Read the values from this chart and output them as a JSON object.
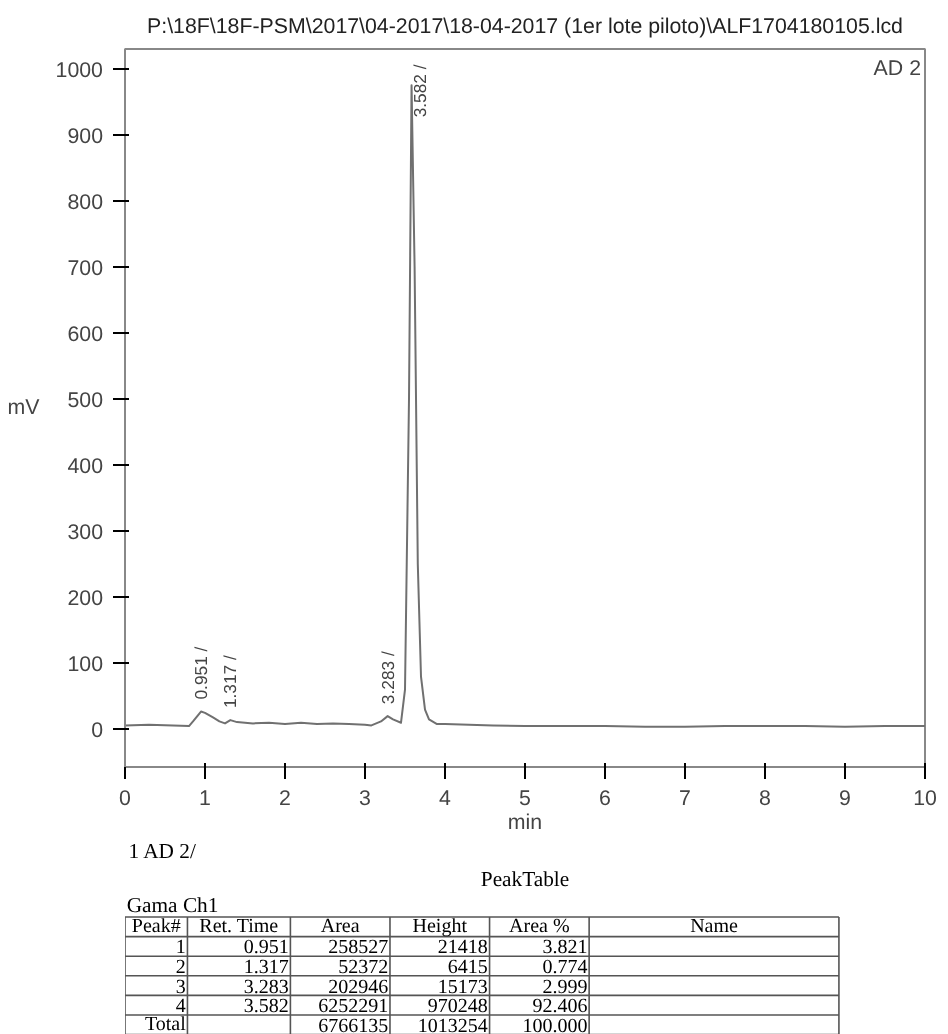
{
  "chart_data": {
    "type": "line",
    "title": "P:\\18F\\18F-PSM\\2017\\04-2017\\18-04-2017 (1er lote piloto)\\ALF1704180105.lcd",
    "xlabel": "min",
    "ylabel": "mV",
    "x": [
      0,
      0.3,
      0.6,
      0.8,
      0.85,
      0.95,
      1.0,
      1.1,
      1.18,
      1.25,
      1.317,
      1.4,
      1.6,
      1.8,
      2.0,
      2.2,
      2.4,
      2.6,
      2.8,
      3.0,
      3.08,
      3.2,
      3.283,
      3.35,
      3.45,
      3.5,
      3.55,
      3.582,
      3.62,
      3.66,
      3.7,
      3.75,
      3.8,
      3.9,
      4.0,
      4.3,
      4.6,
      5,
      5.5,
      6,
      6.5,
      7,
      7.5,
      8,
      8.5,
      9,
      9.5,
      10
    ],
    "series": [
      {
        "color": "#707070",
        "values": [
          6,
          7,
          6,
          5,
          12,
          27,
          25,
          18,
          12,
          9,
          14,
          11,
          9,
          10,
          8,
          10,
          8,
          9,
          8,
          7,
          6,
          12,
          20,
          15,
          10,
          60,
          500,
          975,
          700,
          250,
          80,
          30,
          15,
          8,
          8,
          7,
          6,
          5,
          5,
          5,
          4,
          4,
          5,
          5,
          5,
          4,
          5,
          5
        ]
      }
    ],
    "xlim": [
      0,
      10
    ],
    "ylim": [
      -57,
      1030
    ],
    "xticks": [
      0,
      1,
      2,
      3,
      4,
      5,
      6,
      7,
      8,
      9,
      10
    ],
    "yticks": [
      0,
      100,
      200,
      300,
      400,
      500,
      600,
      700,
      800,
      900,
      1000
    ],
    "grid": false,
    "marker": "none",
    "line_style": "solid",
    "annotations": [
      {
        "text": "0.951 /",
        "x": 0.951,
        "y": 27
      },
      {
        "text": "1.317 /",
        "x": 1.317,
        "y": 14
      },
      {
        "text": "3.283 /",
        "x": 3.283,
        "y": 20
      },
      {
        "text": "3.582 /",
        "x": 3.582,
        "y": 975
      },
      "AD 2",
      "1 AD 2/",
      "PeakTable",
      "Gama Ch1",
      "Peak#",
      "Ret. Time",
      "Area",
      "Height",
      "Area %",
      "Name",
      "1",
      "0.951",
      "258527",
      "21418",
      "3.821",
      null,
      "2",
      "1.317",
      "52372",
      "6415",
      "0.774",
      null,
      "3",
      "3.283",
      "202946",
      "15173",
      "2.999",
      null,
      "4",
      "3.582",
      "6252291",
      "970248",
      "92.406",
      null,
      "Total",
      null,
      "6766135",
      "1013254",
      "100.000",
      null
    ]
  }
}
